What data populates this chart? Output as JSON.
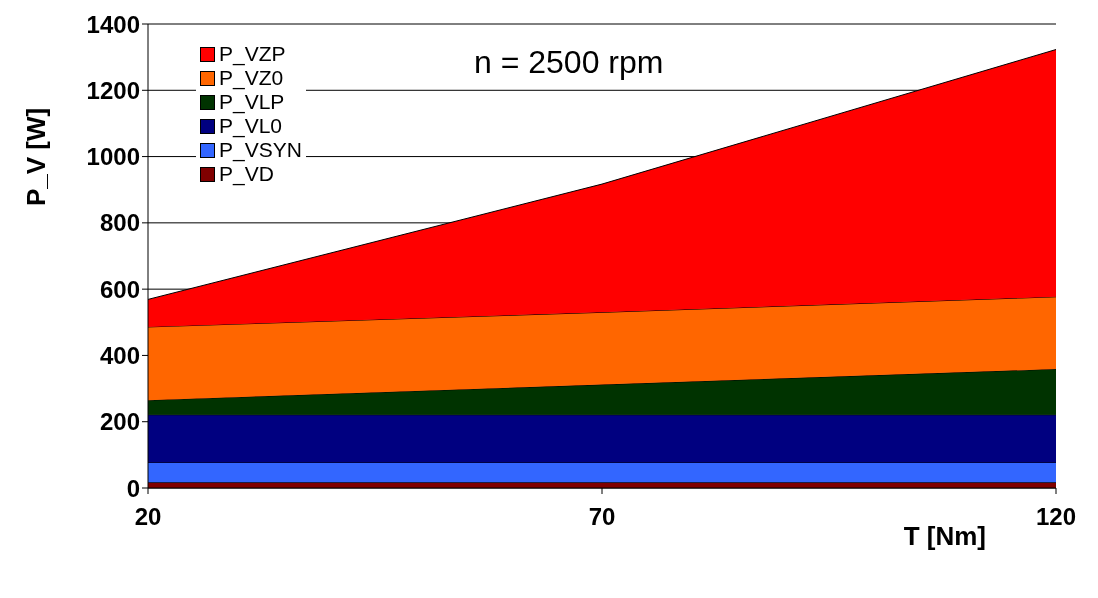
{
  "chart_data": {
    "type": "area",
    "stacked": true,
    "xlabel": "T [Nm]",
    "ylabel": "P_V [W]",
    "annotations": [
      "n = 2500 rpm"
    ],
    "x": [
      20,
      70,
      120
    ],
    "xlim": [
      20,
      120
    ],
    "xticks": [
      20,
      70,
      120
    ],
    "ylim": [
      0,
      1400
    ],
    "yticks": [
      0,
      200,
      400,
      600,
      800,
      1000,
      1200,
      1400
    ],
    "grid": "y",
    "legend": "top left",
    "series": [
      {
        "name": "P_VD",
        "color": "#800000",
        "values": [
          17,
          17,
          17
        ]
      },
      {
        "name": "P_VSYN",
        "color": "#3366ff",
        "values": [
          60,
          60,
          60
        ]
      },
      {
        "name": "P_VL0",
        "color": "#000080",
        "values": [
          144,
          144,
          144
        ]
      },
      {
        "name": "P_VLP",
        "color": "#003300",
        "values": [
          44,
          91,
          138
        ]
      },
      {
        "name": "P_VZ0",
        "color": "#ff6600",
        "values": [
          221,
          218,
          218
        ]
      },
      {
        "name": "P_VZP",
        "color": "#ff0000",
        "values": [
          83,
          387,
          746
        ]
      }
    ]
  }
}
